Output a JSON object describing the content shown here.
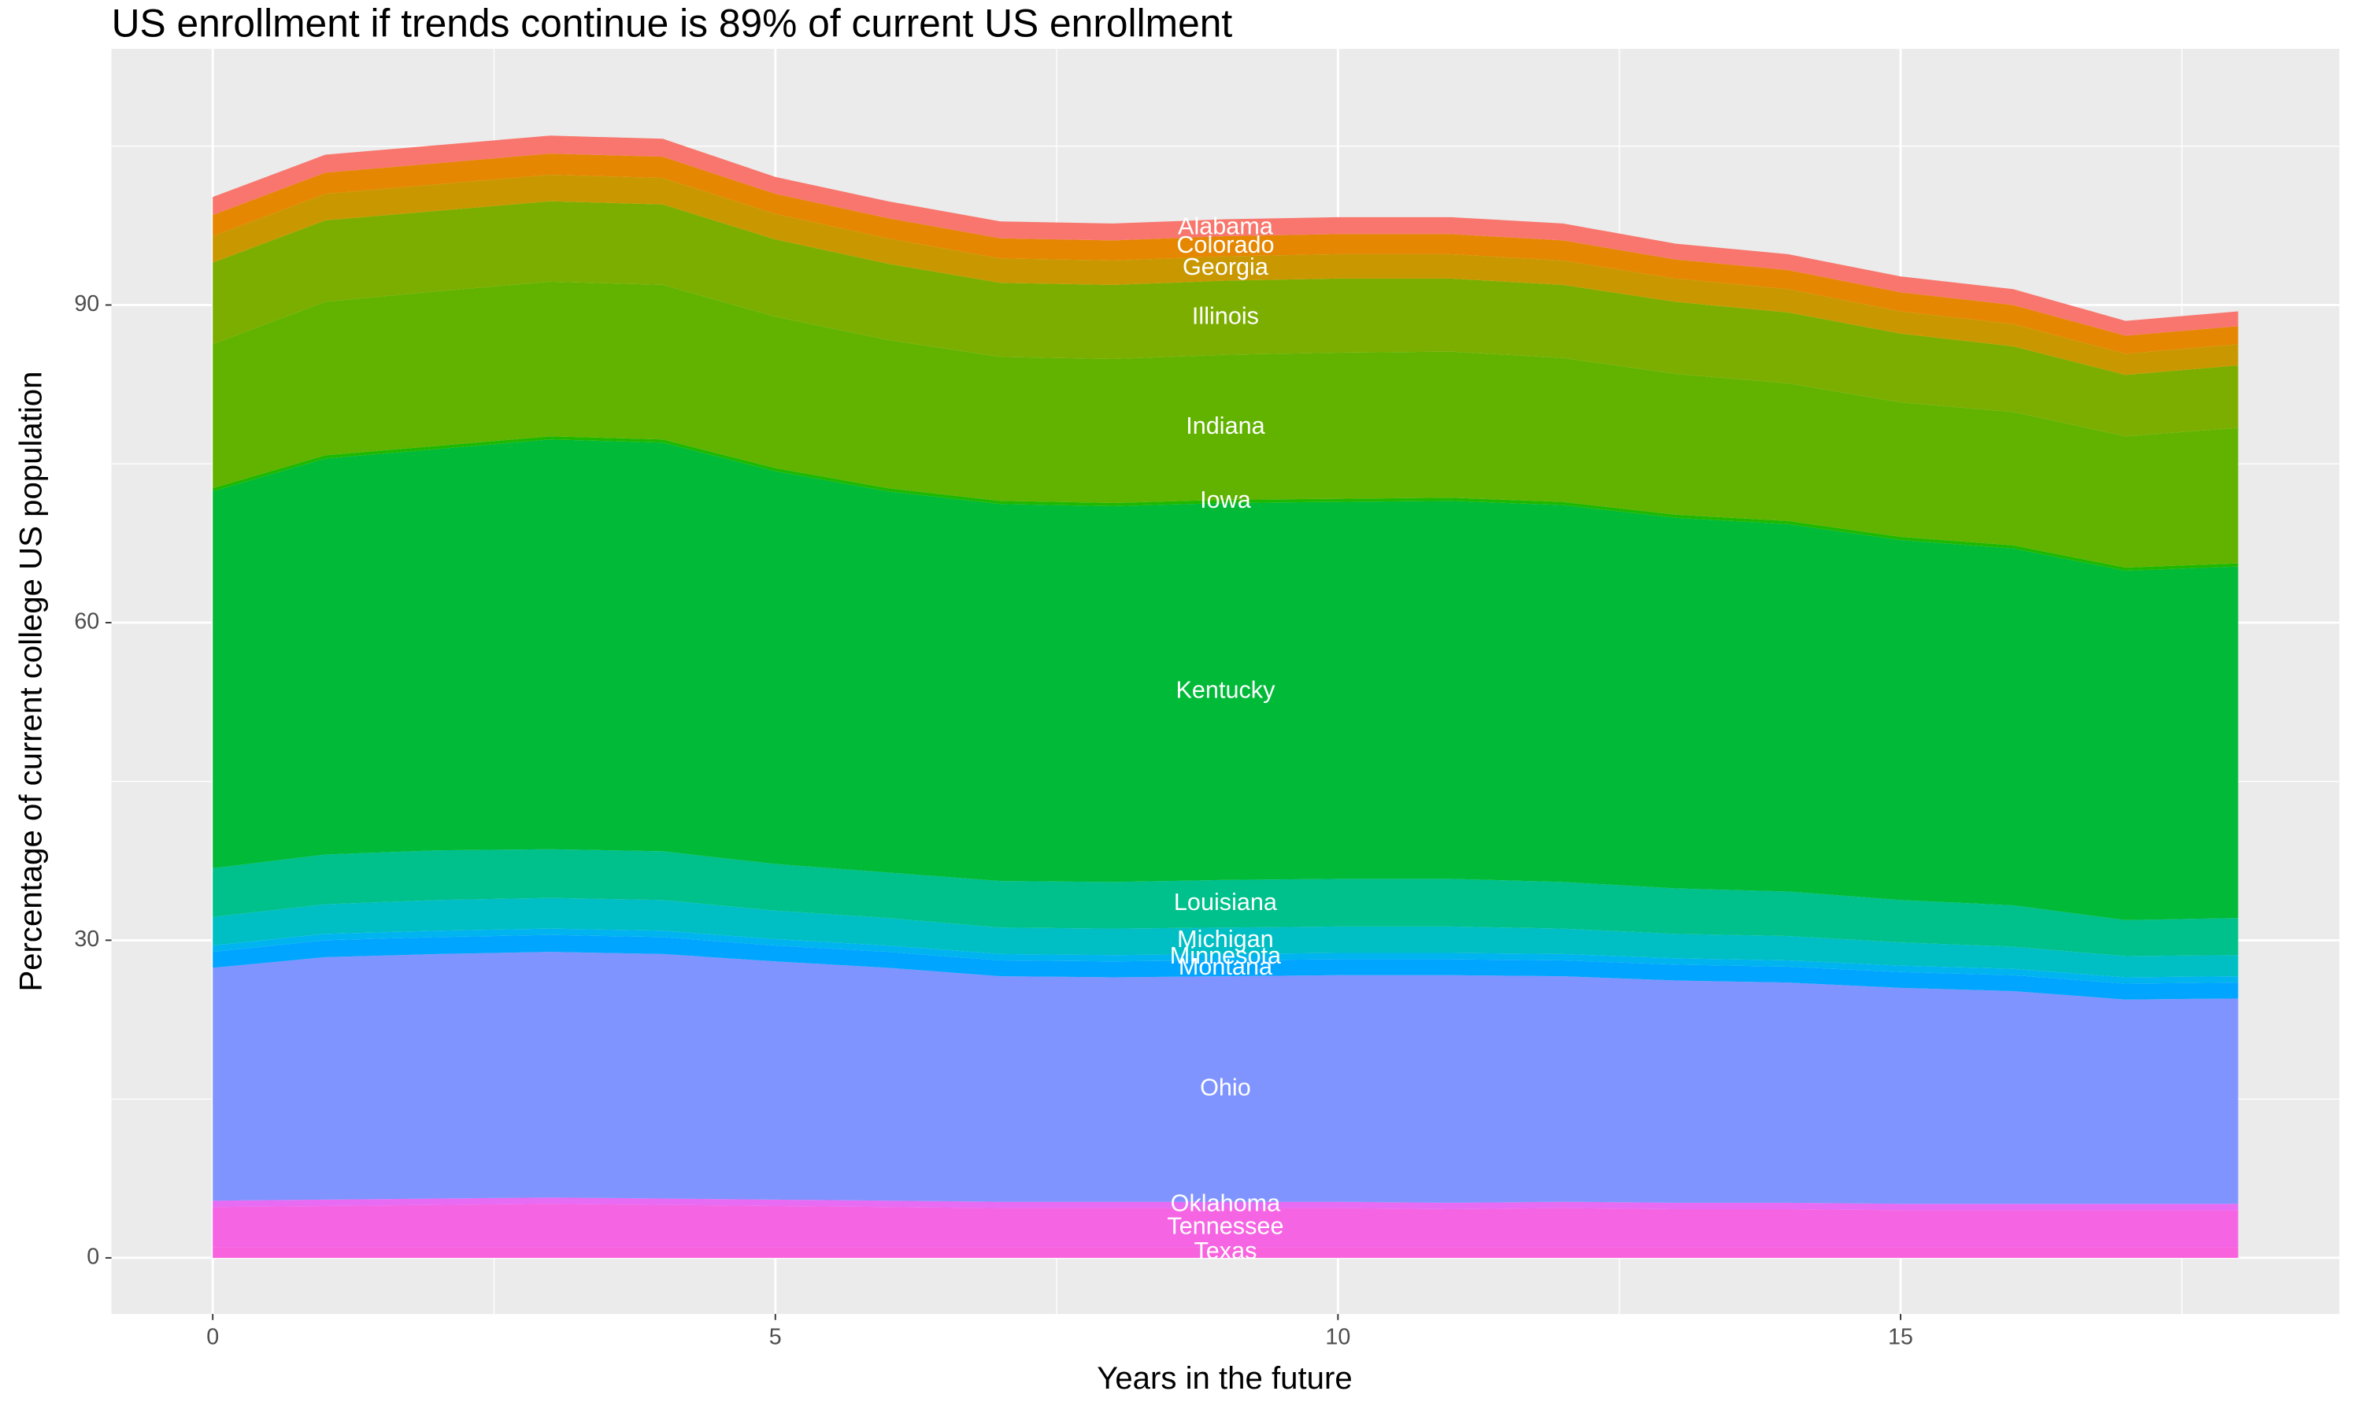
{
  "chart_data": {
    "type": "stacked-area",
    "title": "US enrollment if trends continue is 89% of current US enrollment",
    "x_label": "Years in the future",
    "y_label": "Percentage of current college US population",
    "x": [
      0,
      1,
      2,
      3,
      4,
      5,
      6,
      7,
      8,
      9,
      10,
      11,
      12,
      13,
      14,
      15,
      16,
      17,
      18
    ],
    "xlim": [
      -0.9,
      18.9
    ],
    "xticks": [
      0,
      5,
      10,
      15
    ],
    "x_minor_ticks": [
      2.5,
      7.5,
      12.5,
      17.5
    ],
    "ylim": [
      -5.3,
      114.2
    ],
    "yticks": [
      0,
      30,
      60,
      90
    ],
    "y_minor_ticks": [
      15,
      45,
      75,
      105
    ],
    "grid": true,
    "label_at_x": 9,
    "series": [
      {
        "name": "Alabama",
        "color": "#f8766d",
        "values": [
          1.7,
          1.7,
          1.7,
          1.7,
          1.7,
          1.6,
          1.6,
          1.6,
          1.6,
          1.6,
          1.6,
          1.6,
          1.6,
          1.5,
          1.5,
          1.5,
          1.5,
          1.4,
          1.4
        ]
      },
      {
        "name": "Colorado",
        "color": "#e58700",
        "values": [
          2,
          2,
          2,
          2,
          2,
          1.9,
          1.9,
          1.9,
          1.9,
          1.9,
          1.9,
          1.9,
          1.9,
          1.8,
          1.8,
          1.8,
          1.8,
          1.7,
          1.7
        ]
      },
      {
        "name": "Georgia",
        "color": "#c99800",
        "values": [
          2.5,
          2.5,
          2.5,
          2.5,
          2.5,
          2.4,
          2.4,
          2.3,
          2.3,
          2.3,
          2.3,
          2.3,
          2.3,
          2.2,
          2.2,
          2.1,
          2.1,
          2,
          2
        ]
      },
      {
        "name": "Illinois",
        "color": "#7cae00",
        "values": [
          7.7,
          7.7,
          7.6,
          7.6,
          7.6,
          7.3,
          7.2,
          7,
          7,
          7,
          7,
          6.9,
          6.9,
          6.8,
          6.7,
          6.5,
          6.2,
          5.8,
          5.9
        ]
      },
      {
        "name": "Indiana",
        "color": "#61b300",
        "values": [
          13.6,
          14.5,
          14.6,
          14.6,
          14.6,
          14.3,
          14,
          13.6,
          13.6,
          13.7,
          13.8,
          13.8,
          13.6,
          13.3,
          13,
          12.7,
          12.6,
          12.4,
          12.8
        ]
      },
      {
        "name": "Iowa",
        "color": "#1fb800",
        "values": [
          0.3,
          0.3,
          0.3,
          0.3,
          0.3,
          0.3,
          0.3,
          0.3,
          0.3,
          0.3,
          0.3,
          0.3,
          0.3,
          0.3,
          0.3,
          0.3,
          0.3,
          0.3,
          0.3
        ]
      },
      {
        "name": "Kentucky",
        "color": "#00ba38",
        "values": [
          35.6,
          37.4,
          37.9,
          38.7,
          38.6,
          37.1,
          36,
          35.6,
          35.5,
          35.6,
          35.6,
          35.7,
          35.6,
          35,
          34.7,
          34,
          33.7,
          33,
          33.2
        ]
      },
      {
        "name": "Louisiana",
        "color": "#00c08b",
        "values": [
          4.6,
          4.7,
          4.7,
          4.6,
          4.6,
          4.4,
          4.3,
          4.4,
          4.4,
          4.5,
          4.5,
          4.5,
          4.4,
          4.3,
          4.2,
          4,
          3.9,
          3.4,
          3.5
        ]
      },
      {
        "name": "Michigan",
        "color": "#00bfc4",
        "values": [
          2.7,
          2.8,
          2.9,
          2.9,
          2.9,
          2.7,
          2.6,
          2.5,
          2.5,
          2.5,
          2.5,
          2.5,
          2.4,
          2.3,
          2.3,
          2.2,
          2.1,
          2,
          2
        ]
      },
      {
        "name": "Minnesota",
        "color": "#00b4f0",
        "values": [
          0.6,
          0.6,
          0.6,
          0.6,
          0.6,
          0.6,
          0.6,
          0.6,
          0.6,
          0.6,
          0.6,
          0.6,
          0.6,
          0.6,
          0.6,
          0.6,
          0.6,
          0.6,
          0.6
        ]
      },
      {
        "name": "Montana",
        "color": "#00a5ff",
        "values": [
          1.5,
          1.6,
          1.6,
          1.6,
          1.6,
          1.5,
          1.5,
          1.5,
          1.5,
          1.5,
          1.5,
          1.5,
          1.5,
          1.5,
          1.5,
          1.5,
          1.5,
          1.5,
          1.5
        ]
      },
      {
        "name": "Ohio",
        "color": "#8094ff",
        "values": [
          22,
          22.9,
          23.1,
          23.2,
          23.1,
          22.5,
          22,
          21.3,
          21.2,
          21.3,
          21.4,
          21.5,
          21.3,
          21,
          20.8,
          20.4,
          20.1,
          19.3,
          19.4
        ]
      },
      {
        "name": "Oklahoma",
        "color": "#e76bf3",
        "values": [
          0.6,
          0.6,
          0.6,
          0.6,
          0.6,
          0.6,
          0.6,
          0.6,
          0.6,
          0.6,
          0.6,
          0.6,
          0.6,
          0.6,
          0.6,
          0.6,
          0.6,
          0.6,
          0.6
        ]
      },
      {
        "name": "Tennessee",
        "color": "#f564e3",
        "values": [
          3.8,
          3.9,
          4,
          4.1,
          4,
          3.9,
          3.8,
          3.7,
          3.7,
          3.7,
          3.7,
          3.6,
          3.7,
          3.6,
          3.6,
          3.5,
          3.5,
          3.5,
          3.5
        ]
      },
      {
        "name": "Texas",
        "color": "#f962dd",
        "values": [
          1,
          1,
          1,
          1,
          1,
          1,
          1,
          1,
          1,
          1,
          1,
          1,
          1,
          1,
          1,
          1,
          1,
          1,
          1
        ]
      }
    ]
  }
}
